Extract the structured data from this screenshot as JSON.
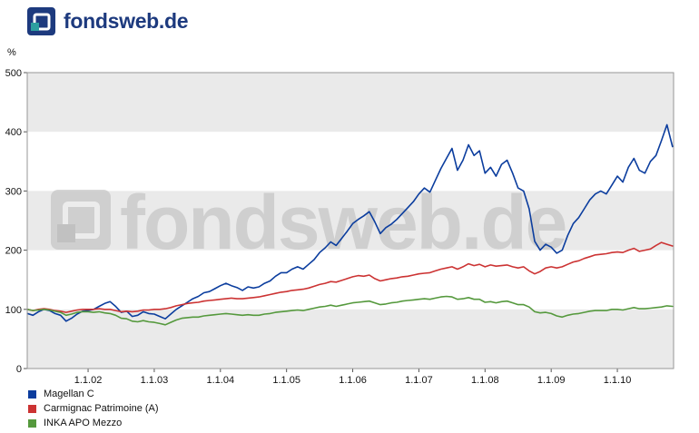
{
  "header": {
    "logo_text": "fondsweb.de"
  },
  "watermark": {
    "text": "fondsweb.de"
  },
  "chart_data": {
    "type": "line",
    "title": "",
    "xlabel": "",
    "ylabel": "%",
    "ylim": [
      0,
      500
    ],
    "yticks": [
      0,
      100,
      200,
      300,
      400,
      500
    ],
    "xlim": [
      2001.08,
      2010.85
    ],
    "xtick_years": [
      2002,
      2003,
      2004,
      2005,
      2006,
      2007,
      2008,
      2009,
      2010
    ],
    "xtick_labels": [
      "1.1.02",
      "1.1.03",
      "1.1.04",
      "1.1.05",
      "1.1.06",
      "1.1.07",
      "1.1.08",
      "1.1.09",
      "1.1.10"
    ],
    "grid": "horizontal-bands",
    "gray_bands": [
      [
        400,
        500
      ],
      [
        200,
        300
      ],
      [
        0,
        100
      ]
    ],
    "band_fill": "#eaeaea",
    "plot_border_color": "#979797",
    "legend_position": "bottom-left",
    "x_start_year": 2001,
    "x_start_month_index": 1,
    "x_resolution": "monthly",
    "series": [
      {
        "name": "Magellan C",
        "color": "#0b3d9e",
        "values": [
          93,
          90,
          96,
          100,
          98,
          93,
          90,
          80,
          85,
          92,
          97,
          98,
          100,
          105,
          110,
          113,
          105,
          95,
          97,
          88,
          90,
          96,
          93,
          92,
          88,
          84,
          92,
          100,
          106,
          112,
          118,
          122,
          128,
          130,
          135,
          140,
          144,
          140,
          137,
          132,
          138,
          136,
          138,
          144,
          148,
          156,
          162,
          162,
          168,
          172,
          168,
          176,
          184,
          196,
          204,
          214,
          208,
          220,
          232,
          245,
          252,
          258,
          265,
          248,
          228,
          238,
          244,
          252,
          262,
          272,
          282,
          295,
          305,
          298,
          318,
          338,
          355,
          372,
          335,
          352,
          378,
          360,
          368,
          330,
          340,
          325,
          345,
          352,
          330,
          305,
          300,
          270,
          215,
          200,
          210,
          205,
          195,
          200,
          225,
          245,
          255,
          270,
          285,
          295,
          300,
          295,
          310,
          325,
          315,
          340,
          355,
          335,
          330,
          350,
          360,
          385,
          412,
          375
        ]
      },
      {
        "name": "Carmignac Patrimoine (A)",
        "color": "#cc3333",
        "values": [
          100,
          98,
          100,
          101,
          100,
          98,
          97,
          95,
          97,
          99,
          100,
          100,
          100,
          101,
          100,
          100,
          98,
          96,
          97,
          96,
          97,
          99,
          99,
          100,
          100,
          101,
          103,
          106,
          108,
          110,
          111,
          112,
          114,
          115,
          116,
          117,
          118,
          119,
          118,
          118,
          119,
          120,
          121,
          123,
          125,
          127,
          129,
          130,
          132,
          133,
          134,
          136,
          139,
          142,
          144,
          147,
          146,
          149,
          152,
          155,
          157,
          156,
          158,
          152,
          148,
          150,
          152,
          153,
          155,
          156,
          158,
          160,
          161,
          162,
          165,
          168,
          170,
          172,
          168,
          172,
          177,
          174,
          176,
          172,
          175,
          173,
          174,
          175,
          172,
          170,
          172,
          165,
          160,
          164,
          170,
          172,
          170,
          172,
          176,
          180,
          182,
          186,
          189,
          192,
          193,
          194,
          196,
          197,
          196,
          200,
          203,
          198,
          200,
          202,
          208,
          213,
          210,
          207
        ]
      },
      {
        "name": "INKA APO Mezzo",
        "color": "#55993d",
        "values": [
          100,
          98,
          99,
          100,
          99,
          97,
          95,
          90,
          92,
          95,
          96,
          96,
          95,
          96,
          94,
          93,
          90,
          85,
          84,
          80,
          79,
          81,
          79,
          78,
          76,
          74,
          78,
          82,
          85,
          86,
          87,
          87,
          89,
          90,
          91,
          92,
          93,
          92,
          91,
          90,
          91,
          90,
          90,
          92,
          93,
          95,
          96,
          97,
          98,
          99,
          98,
          100,
          102,
          104,
          105,
          107,
          105,
          107,
          109,
          111,
          112,
          113,
          114,
          111,
          108,
          109,
          111,
          112,
          114,
          115,
          116,
          117,
          118,
          117,
          119,
          121,
          122,
          121,
          117,
          118,
          120,
          117,
          117,
          112,
          113,
          111,
          113,
          114,
          111,
          108,
          108,
          104,
          96,
          94,
          95,
          93,
          89,
          87,
          90,
          92,
          93,
          95,
          97,
          98,
          98,
          98,
          100,
          100,
          99,
          101,
          103,
          101,
          101,
          102,
          103,
          104,
          106,
          105
        ]
      }
    ]
  }
}
